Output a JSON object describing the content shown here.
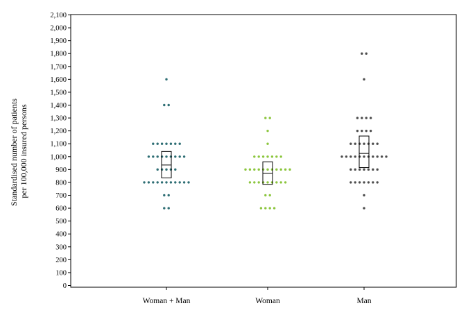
{
  "chart_data": {
    "type": "scatter",
    "subtype": "dot-plot-with-box",
    "ylabel_lines": [
      "Standardised number of patients",
      "per 100,000 insured persons"
    ],
    "xlabel": "",
    "ylim": [
      0,
      2100
    ],
    "ytick_step": 100,
    "grid": false,
    "categories": [
      "Woman + Man",
      "Woman",
      "Man"
    ],
    "series": [
      {
        "category": "Woman + Man",
        "color": "#2e6e74",
        "rows": [
          {
            "y": 600,
            "n": 2
          },
          {
            "y": 700,
            "n": 2
          },
          {
            "y": 800,
            "n": 11
          },
          {
            "y": 900,
            "n": 5
          },
          {
            "y": 1000,
            "n": 9
          },
          {
            "y": 1100,
            "n": 7
          },
          {
            "y": 1400,
            "n": 2
          },
          {
            "y": 1600,
            "n": 1
          }
        ],
        "box": {
          "q1": 835,
          "median": 935,
          "q3": 1040
        }
      },
      {
        "category": "Woman",
        "color": "#8cc63e",
        "rows": [
          {
            "y": 600,
            "n": 4
          },
          {
            "y": 700,
            "n": 2
          },
          {
            "y": 800,
            "n": 9
          },
          {
            "y": 900,
            "n": 11
          },
          {
            "y": 1000,
            "n": 7
          },
          {
            "y": 1100,
            "n": 1
          },
          {
            "y": 1200,
            "n": 1
          },
          {
            "y": 1300,
            "n": 2
          }
        ],
        "box": {
          "q1": 785,
          "median": 870,
          "q3": 960
        }
      },
      {
        "category": "Man",
        "color": "#4d4d4d",
        "rows": [
          {
            "y": 600,
            "n": 1
          },
          {
            "y": 700,
            "n": 1
          },
          {
            "y": 800,
            "n": 7
          },
          {
            "y": 900,
            "n": 7
          },
          {
            "y": 1000,
            "n": 11
          },
          {
            "y": 1100,
            "n": 7
          },
          {
            "y": 1200,
            "n": 4
          },
          {
            "y": 1300,
            "n": 4
          },
          {
            "y": 1600,
            "n": 1
          },
          {
            "y": 1800,
            "n": 2
          }
        ],
        "box": {
          "q1": 915,
          "median": 1025,
          "q3": 1160
        }
      }
    ]
  }
}
